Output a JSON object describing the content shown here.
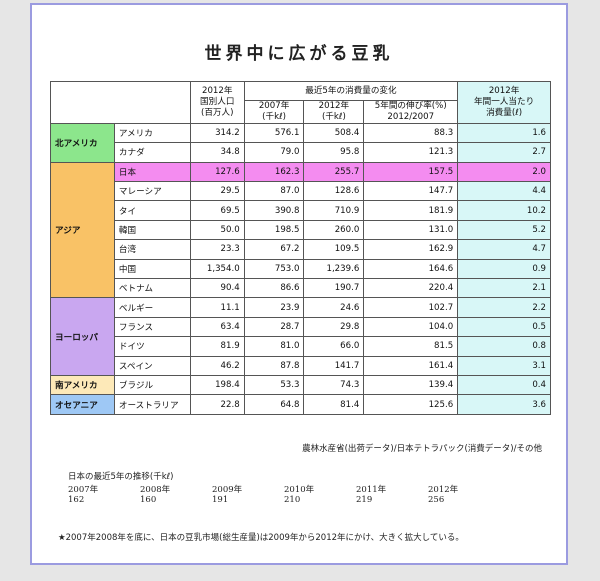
{
  "title": "世界中に広がる豆乳",
  "headers": {
    "pop": "2012年\n国別人口\n(百万人)",
    "change": "最近5年の消費量の変化",
    "y2007": "2007年\n(千kℓ)",
    "y2012": "2012年\n(千kℓ)",
    "growth": "5年間の伸び率(%)\n2012/2007",
    "percap": "2012年\n年間一人当たり\n消費量(ℓ)"
  },
  "regions": [
    {
      "name": "北アメリカ",
      "color": "#8ce68c",
      "rows": [
        {
          "country": "アメリカ",
          "pop": "314.2",
          "v2007": "576.1",
          "v2012": "508.4",
          "growth": "88.3",
          "percap": "1.6"
        },
        {
          "country": "カナダ",
          "pop": "34.8",
          "v2007": "79.0",
          "v2012": "95.8",
          "growth": "121.3",
          "percap": "2.7"
        }
      ]
    },
    {
      "name": "アジア",
      "color": "#f9c266",
      "rows": [
        {
          "country": "日本",
          "pop": "127.6",
          "v2007": "162.3",
          "v2012": "255.7",
          "growth": "157.5",
          "percap": "2.0",
          "highlight": true
        },
        {
          "country": "マレーシア",
          "pop": "29.5",
          "v2007": "87.0",
          "v2012": "128.6",
          "growth": "147.7",
          "percap": "4.4"
        },
        {
          "country": "タイ",
          "pop": "69.5",
          "v2007": "390.8",
          "v2012": "710.9",
          "growth": "181.9",
          "percap": "10.2"
        },
        {
          "country": "韓国",
          "pop": "50.0",
          "v2007": "198.5",
          "v2012": "260.0",
          "growth": "131.0",
          "percap": "5.2"
        },
        {
          "country": "台湾",
          "pop": "23.3",
          "v2007": "67.2",
          "v2012": "109.5",
          "growth": "162.9",
          "percap": "4.7"
        },
        {
          "country": "中国",
          "pop": "1,354.0",
          "v2007": "753.0",
          "v2012": "1,239.6",
          "growth": "164.6",
          "percap": "0.9"
        },
        {
          "country": "ベトナム",
          "pop": "90.4",
          "v2007": "86.6",
          "v2012": "190.7",
          "growth": "220.4",
          "percap": "2.1"
        }
      ]
    },
    {
      "name": "ヨーロッパ",
      "color": "#c9a7f0",
      "rows": [
        {
          "country": "ベルギー",
          "pop": "11.1",
          "v2007": "23.9",
          "v2012": "24.6",
          "growth": "102.7",
          "percap": "2.2"
        },
        {
          "country": "フランス",
          "pop": "63.4",
          "v2007": "28.7",
          "v2012": "29.8",
          "growth": "104.0",
          "percap": "0.5"
        },
        {
          "country": "ドイツ",
          "pop": "81.9",
          "v2007": "81.0",
          "v2012": "66.0",
          "growth": "81.5",
          "percap": "0.8"
        },
        {
          "country": "スペイン",
          "pop": "46.2",
          "v2007": "87.8",
          "v2012": "141.7",
          "growth": "161.4",
          "percap": "3.1"
        }
      ]
    },
    {
      "name": "南アメリカ",
      "color": "#fde9b8",
      "rows": [
        {
          "country": "ブラジル",
          "pop": "198.4",
          "v2007": "53.3",
          "v2012": "74.3",
          "growth": "139.4",
          "percap": "0.4"
        }
      ]
    },
    {
      "name": "オセアニア",
      "color": "#9ec8f5",
      "rows": [
        {
          "country": "オーストラリア",
          "pop": "22.8",
          "v2007": "64.8",
          "v2012": "81.4",
          "growth": "125.6",
          "percap": "3.6"
        }
      ]
    }
  ],
  "colors": {
    "highlight": "#f48cf0",
    "percap_bg": "#d8f7f7"
  },
  "source": "農林水産省(出荷データ)/日本テトラパック(消費データ)/その他",
  "trend_title": "日本の最近5年の推移(千kℓ)",
  "trend": [
    {
      "year": "2007年",
      "value": "162"
    },
    {
      "year": "2008年",
      "value": "160"
    },
    {
      "year": "2009年",
      "value": "191"
    },
    {
      "year": "2010年",
      "value": "210"
    },
    {
      "year": "2011年",
      "value": "219"
    },
    {
      "year": "2012年",
      "value": "256"
    }
  ],
  "footnote": "★2007年2008年を底に、日本の豆乳市場(総生産量)は2009年から2012年にかけ、大きく拡大している。"
}
